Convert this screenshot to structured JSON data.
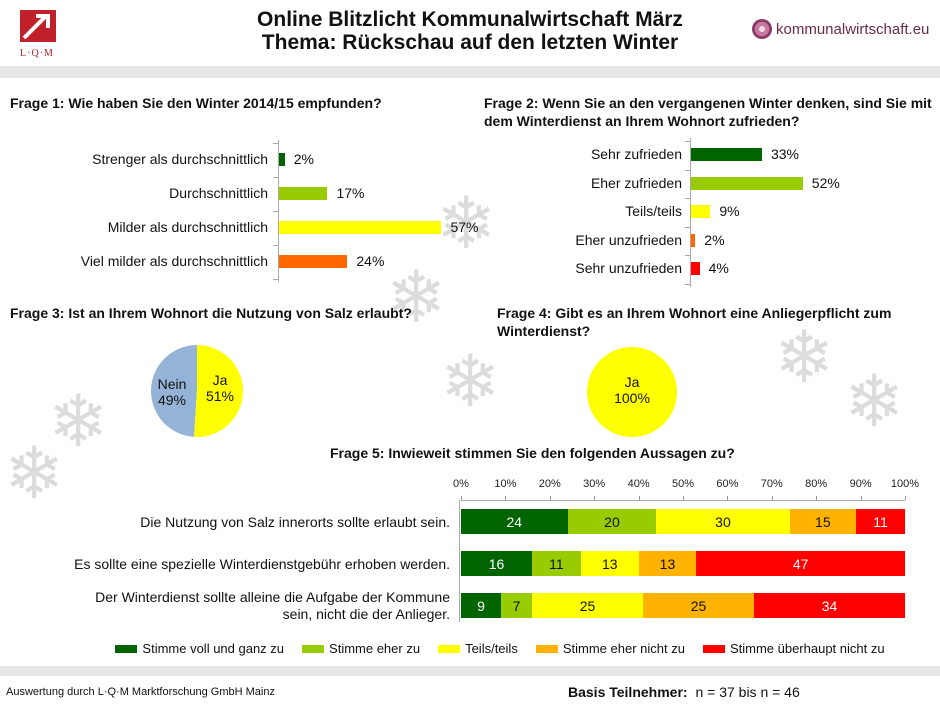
{
  "header": {
    "title_line1": "Online Blitzlicht Kommunalwirtschaft März",
    "title_line2": "Thema: Rückschau auf den letzten Winter",
    "logo_text": "L·Q·M",
    "brand_text": "kommunalwirtschaft.eu"
  },
  "colors": {
    "dark_green": "#006400",
    "light_green": "#99cc00",
    "yellow": "#ffff00",
    "orange": "#ffb300",
    "orange_q1": "#ff6600",
    "red": "#ff0000",
    "blue_gray": "#95b3d7"
  },
  "footer": {
    "source": "Auswertung durch L·Q·M Marktforschung GmbH Mainz",
    "basis_label": "Basis Teilnehmer:",
    "basis_value": "n = 37 bis n = 46"
  },
  "chart_data": [
    {
      "type": "bar",
      "orientation": "horizontal",
      "title": "Frage 1: Wie haben Sie den Winter 2014/15 empfunden?",
      "categories": [
        "Strenger als durchschnittlich",
        "Durchschnittlich",
        "Milder als durchschnittlich",
        "Viel milder als durchschnittlich"
      ],
      "values": [
        2,
        17,
        57,
        24
      ],
      "value_labels": [
        "2%",
        "17%",
        "57%",
        "24%"
      ],
      "bar_colors": [
        "#006400",
        "#99cc00",
        "#ffff00",
        "#ff6600"
      ],
      "unit": "%"
    },
    {
      "type": "bar",
      "orientation": "horizontal",
      "title": "Frage 2: Wenn Sie an den vergangenen Winter denken, sind Sie mit dem Winterdienst an Ihrem Wohnort zufrieden?",
      "categories": [
        "Sehr zufrieden",
        "Eher zufrieden",
        "Teils/teils",
        "Eher unzufrieden",
        "Sehr unzufrieden"
      ],
      "values": [
        33,
        52,
        9,
        2,
        4
      ],
      "value_labels": [
        "33%",
        "52%",
        "9%",
        "2%",
        "4%"
      ],
      "bar_colors": [
        "#006400",
        "#99cc00",
        "#ffff00",
        "#ff6600",
        "#ff0000"
      ],
      "unit": "%"
    },
    {
      "type": "pie",
      "title": "Frage 3: Ist an Ihrem Wohnort die Nutzung von Salz erlaubt?",
      "slices": [
        {
          "label": "Ja",
          "value": 51,
          "value_label": "51%",
          "color": "#ffff00"
        },
        {
          "label": "Nein",
          "value": 49,
          "value_label": "49%",
          "color": "#95b3d7"
        }
      ]
    },
    {
      "type": "pie",
      "title": "Frage 4: Gibt es an Ihrem Wohnort eine Anliegerpflicht zum Winterdienst?",
      "slices": [
        {
          "label": "Ja",
          "value": 100,
          "value_label": "100%",
          "color": "#ffff00"
        }
      ]
    },
    {
      "type": "bar",
      "orientation": "horizontal",
      "stacked": true,
      "percent": true,
      "title": "Frage 5: Inwieweit stimmen Sie den folgenden Aussagen zu?",
      "x_ticks": [
        "0%",
        "10%",
        "20%",
        "30%",
        "40%",
        "50%",
        "60%",
        "70%",
        "80%",
        "90%",
        "100%"
      ],
      "xlim": [
        0,
        100
      ],
      "categories": [
        "Die Nutzung von Salz innerorts sollte erlaubt sein.",
        "Es sollte eine spezielle Winterdienstgebühr erhoben werden.",
        "Der Winterdienst sollte alleine die Aufgabe der Kommune sein, nicht die der Anlieger."
      ],
      "category_lines": [
        [
          "Die Nutzung von Salz innerorts sollte erlaubt sein."
        ],
        [
          "Es sollte eine spezielle Winterdienstgebühr erhoben werden."
        ],
        [
          "Der Winterdienst sollte alleine die Aufgabe der Kommune",
          "sein, nicht die der Anlieger."
        ]
      ],
      "series": [
        {
          "name": "Stimme voll und ganz zu",
          "color": "#006400",
          "text_color": "#ffffff",
          "values": [
            24,
            16,
            9
          ]
        },
        {
          "name": "Stimme eher zu",
          "color": "#99cc00",
          "text_color": "#111111",
          "values": [
            20,
            11,
            7
          ]
        },
        {
          "name": "Teils/teils",
          "color": "#ffff00",
          "text_color": "#111111",
          "values": [
            30,
            13,
            25
          ]
        },
        {
          "name": "Stimme eher nicht zu",
          "color": "#ffb300",
          "text_color": "#111111",
          "values": [
            15,
            13,
            25
          ]
        },
        {
          "name": "Stimme überhaupt nicht zu",
          "color": "#ff0000",
          "text_color": "#ffffff",
          "values": [
            11,
            47,
            34
          ]
        }
      ],
      "legend": "bottom"
    }
  ]
}
